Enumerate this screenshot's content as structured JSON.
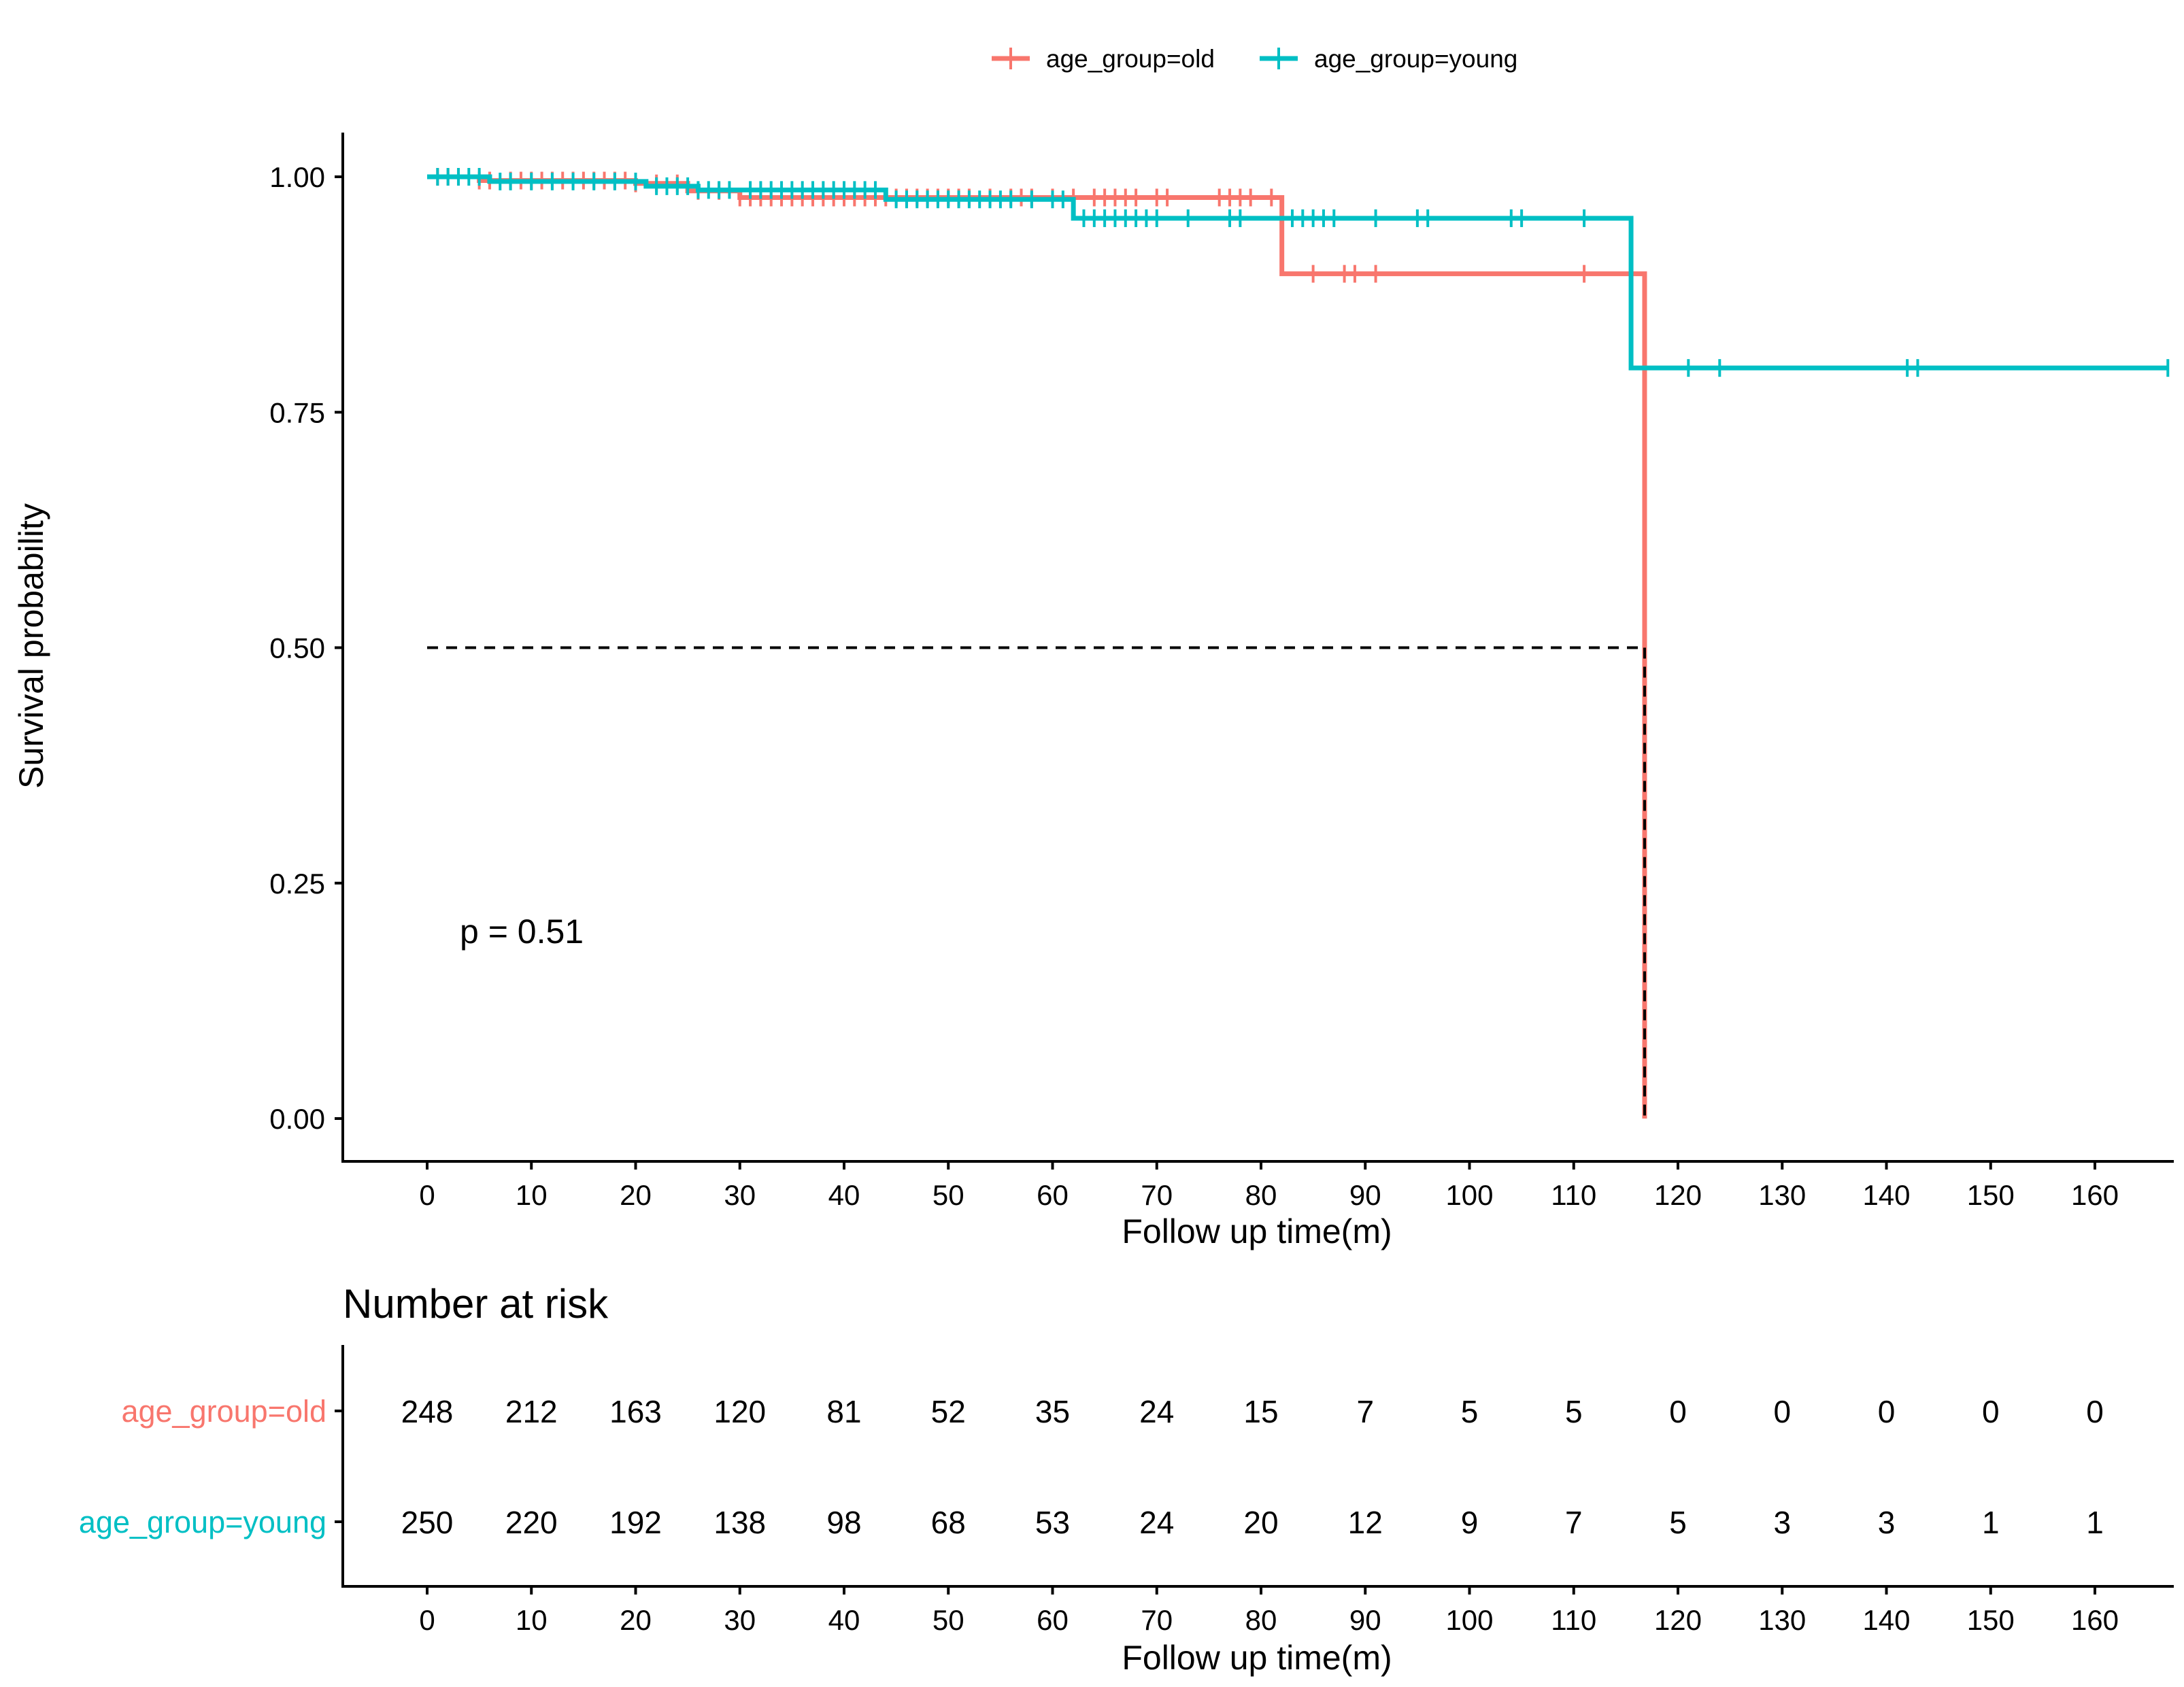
{
  "chart_data": {
    "type": "line",
    "subtype": "kaplan-meier",
    "legend": {
      "placement": "top-center",
      "items": [
        {
          "label": "age_group=old",
          "color": "#F8766D"
        },
        {
          "label": "age_group=young",
          "color": "#00BFC4"
        }
      ]
    },
    "xlabel": "Follow up time(m)",
    "ylabel": "Survival probability",
    "xlim": [
      -8,
      168
    ],
    "ylim": [
      -0.05,
      1.05
    ],
    "x_ticks": [
      0,
      10,
      20,
      30,
      40,
      50,
      60,
      70,
      80,
      90,
      100,
      110,
      120,
      130,
      140,
      150,
      160
    ],
    "x_tick_labels": [
      "0",
      "10",
      "20",
      "30",
      "40",
      "50",
      "60",
      "70",
      "80",
      "90",
      "100",
      "110",
      "120",
      "130",
      "140",
      "150",
      "160"
    ],
    "y_ticks": [
      0,
      0.25,
      0.5,
      0.75,
      1.0
    ],
    "y_tick_labels": [
      "0.00",
      "0.25",
      "0.50",
      "0.75",
      "1.00"
    ],
    "p_value_text": "p = 0.51",
    "median_line": {
      "y": 0.5,
      "x": 116.8
    },
    "series": [
      {
        "name": "age_group=old",
        "color": "#F8766D",
        "steps": [
          [
            0,
            1.0
          ],
          [
            5,
            0.996
          ],
          [
            20,
            0.993
          ],
          [
            25,
            0.985
          ],
          [
            30,
            0.978
          ],
          [
            82,
            0.897
          ],
          [
            116.8,
            0.0
          ]
        ],
        "end_x": 116.8,
        "censor_times": [
          1,
          2,
          3,
          5,
          6,
          8,
          9,
          10,
          11,
          12,
          13,
          14,
          15,
          16,
          17,
          18,
          19,
          20,
          22,
          24,
          26,
          28,
          30,
          31,
          32,
          33,
          34,
          35,
          36,
          37,
          38,
          39,
          40,
          41,
          42,
          43,
          44,
          45,
          46,
          47,
          48,
          49,
          50,
          51,
          52,
          54,
          56,
          57,
          58,
          60,
          62,
          64,
          65,
          66,
          67,
          68,
          70,
          71,
          76,
          77,
          78,
          79,
          81,
          85,
          88,
          89,
          91,
          111,
          115.5
        ]
      },
      {
        "name": "age_group=young",
        "color": "#00BFC4",
        "steps": [
          [
            0,
            1.0
          ],
          [
            6,
            0.995
          ],
          [
            21,
            0.99
          ],
          [
            26,
            0.986
          ],
          [
            44,
            0.976
          ],
          [
            62,
            0.956
          ],
          [
            115.5,
            0.797
          ]
        ],
        "end_x": 167,
        "censor_times": [
          1,
          2,
          3,
          4,
          5,
          7,
          8,
          10,
          12,
          14,
          16,
          18,
          20,
          22,
          23,
          24,
          25,
          26,
          27,
          28,
          29,
          31,
          32,
          33,
          34,
          35,
          36,
          37,
          38,
          39,
          40,
          41,
          42,
          43,
          45,
          46,
          47,
          48,
          49,
          50,
          51,
          52,
          53,
          54,
          55,
          56,
          58,
          60,
          61,
          63,
          64,
          65,
          66,
          67,
          68,
          69,
          70,
          73,
          77,
          78,
          83,
          84,
          85,
          86,
          87,
          91,
          95,
          96,
          104,
          105,
          111,
          121,
          124,
          142,
          143,
          167
        ]
      }
    ],
    "risk_table": {
      "title": "Number at risk",
      "xlabel": "Follow up time(m)",
      "times": [
        0,
        10,
        20,
        30,
        40,
        50,
        60,
        70,
        80,
        90,
        100,
        110,
        120,
        130,
        140,
        150,
        160
      ],
      "rows": [
        {
          "label": "age_group=old",
          "color": "#F8766D",
          "counts": [
            "248",
            "212",
            "163",
            "120",
            "81",
            "52",
            "35",
            "24",
            "15",
            "7",
            "5",
            "5",
            "0",
            "0",
            "0",
            "0",
            "0"
          ]
        },
        {
          "label": "age_group=young",
          "color": "#00BFC4",
          "counts": [
            "250",
            "220",
            "192",
            "138",
            "98",
            "68",
            "53",
            "24",
            "20",
            "12",
            "9",
            "7",
            "5",
            "3",
            "3",
            "1",
            "1"
          ]
        }
      ]
    }
  }
}
